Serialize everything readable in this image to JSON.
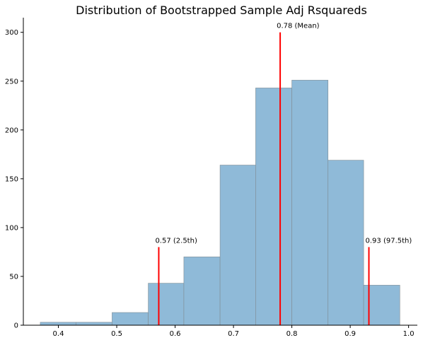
{
  "chart_data": {
    "type": "bar",
    "subtype": "histogram",
    "title": "Distribution of Bootstrapped Sample Adj Rsquareds",
    "xlabel": "",
    "ylabel": "",
    "xlim": [
      0.34,
      1.015
    ],
    "ylim": [
      0,
      315
    ],
    "xticks": [
      0.4,
      0.5,
      0.6,
      0.7,
      0.8,
      0.9,
      1.0
    ],
    "xtick_labels": [
      "0.4",
      "0.5",
      "0.6",
      "0.7",
      "0.8",
      "0.9",
      "1.0"
    ],
    "yticks": [
      0,
      50,
      100,
      150,
      200,
      250,
      300
    ],
    "ytick_labels": [
      "0",
      "50",
      "100",
      "150",
      "200",
      "250",
      "300"
    ],
    "bins": [
      {
        "x0": 0.369,
        "x1": 0.43,
        "count": 3
      },
      {
        "x0": 0.43,
        "x1": 0.492,
        "count": 3
      },
      {
        "x0": 0.492,
        "x1": 0.554,
        "count": 13
      },
      {
        "x0": 0.554,
        "x1": 0.615,
        "count": 43
      },
      {
        "x0": 0.615,
        "x1": 0.677,
        "count": 70
      },
      {
        "x0": 0.677,
        "x1": 0.738,
        "count": 164
      },
      {
        "x0": 0.738,
        "x1": 0.8,
        "count": 243
      },
      {
        "x0": 0.8,
        "x1": 0.862,
        "count": 251
      },
      {
        "x0": 0.862,
        "x1": 0.923,
        "count": 169
      },
      {
        "x0": 0.923,
        "x1": 0.985,
        "count": 41
      }
    ],
    "bar_color": "#8fbad8",
    "bar_edge_color": "#7f8c94",
    "markers": [
      {
        "x": 0.572,
        "height": 80,
        "label": "0.57 (2.5th)"
      },
      {
        "x": 0.78,
        "height": 300,
        "label": "0.78 (Mean)"
      },
      {
        "x": 0.932,
        "height": 80,
        "label": "0.93 (97.5th)"
      }
    ],
    "marker_color": "#ff0000",
    "grid": false,
    "spines": [
      "left",
      "bottom"
    ]
  }
}
